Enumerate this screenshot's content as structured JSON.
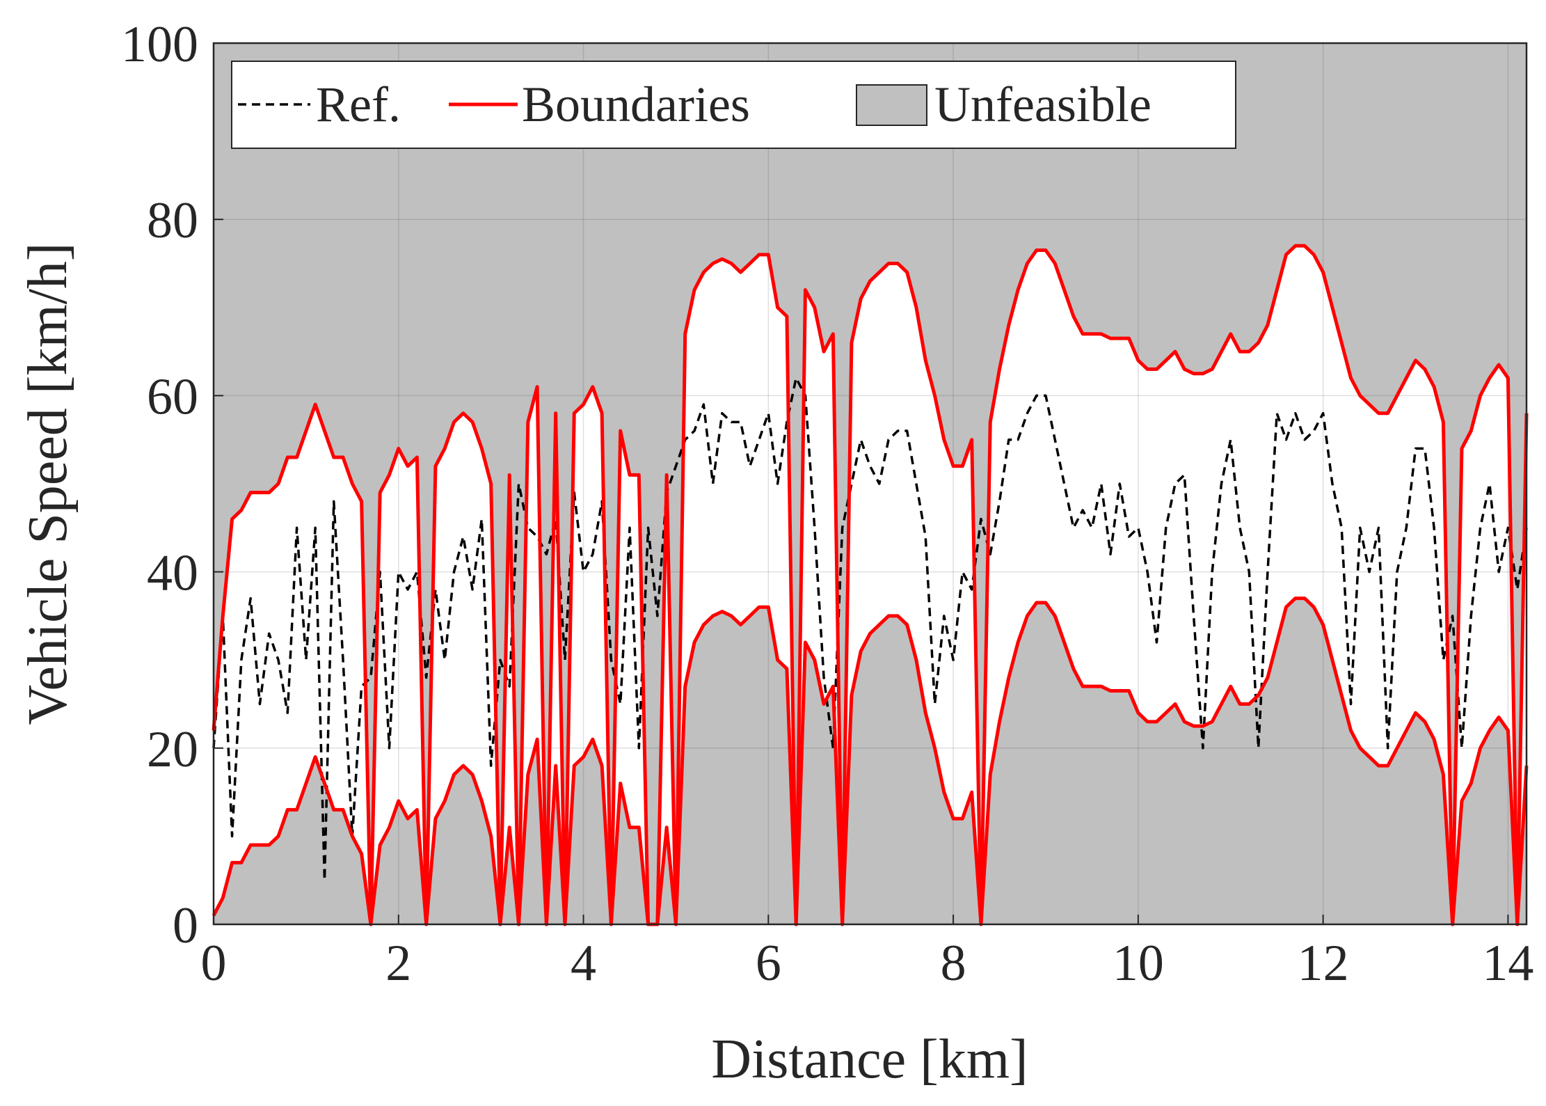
{
  "chart_data": {
    "type": "line",
    "xlabel": "Distance [km]",
    "ylabel": "Vehicle Speed [km/h]",
    "xlim": [
      0,
      14.2
    ],
    "ylim": [
      0,
      100
    ],
    "xticks": [
      0,
      2,
      4,
      6,
      8,
      10,
      12,
      14
    ],
    "yticks": [
      0,
      20,
      40,
      60,
      80,
      100
    ],
    "grid": true,
    "legend": "top-left",
    "unfeasible": {
      "name": "Unfeasible",
      "color": "#c0c0c0"
    },
    "x": [
      0,
      0.1,
      0.2,
      0.3,
      0.4,
      0.5,
      0.6,
      0.7,
      0.8,
      0.9,
      1,
      1.1,
      1.2,
      1.3,
      1.4,
      1.5,
      1.6,
      1.7,
      1.8,
      1.9,
      2,
      2.1,
      2.2,
      2.3,
      2.4,
      2.5,
      2.6,
      2.7,
      2.8,
      2.9,
      3,
      3.1,
      3.2,
      3.3,
      3.4,
      3.5,
      3.6,
      3.7,
      3.8,
      3.9,
      4,
      4.1,
      4.2,
      4.3,
      4.4,
      4.5,
      4.6,
      4.7,
      4.8,
      4.9,
      5,
      5.1,
      5.2,
      5.3,
      5.4,
      5.5,
      5.6,
      5.7,
      5.8,
      5.9,
      6,
      6.1,
      6.2,
      6.3,
      6.4,
      6.5,
      6.6,
      6.7,
      6.8,
      6.9,
      7,
      7.1,
      7.2,
      7.3,
      7.4,
      7.5,
      7.6,
      7.7,
      7.8,
      7.9,
      8,
      8.1,
      8.2,
      8.3,
      8.4,
      8.5,
      8.6,
      8.7,
      8.8,
      8.9,
      9,
      9.1,
      9.2,
      9.3,
      9.4,
      9.5,
      9.6,
      9.7,
      9.8,
      9.9,
      10,
      10.1,
      10.2,
      10.3,
      10.4,
      10.5,
      10.6,
      10.7,
      10.8,
      10.9,
      11,
      11.1,
      11.2,
      11.3,
      11.4,
      11.5,
      11.6,
      11.7,
      11.8,
      11.9,
      12,
      12.1,
      12.2,
      12.3,
      12.4,
      12.5,
      12.6,
      12.7,
      12.8,
      12.9,
      13,
      13.1,
      13.2,
      13.3,
      13.4,
      13.5,
      13.6,
      13.7,
      13.8,
      13.9,
      14,
      14.1,
      14.2
    ],
    "series": [
      {
        "name": "Ref.",
        "color": "#000000",
        "dashed": true,
        "values": [
          20,
          35,
          10,
          30,
          37,
          25,
          33,
          30,
          24,
          45,
          30,
          45,
          5,
          48,
          30,
          10,
          27,
          28,
          40,
          20,
          40,
          38,
          40,
          28,
          38,
          30,
          40,
          44,
          38,
          46,
          18,
          30,
          27,
          50,
          45,
          44,
          42,
          46,
          30,
          49,
          40,
          42,
          48,
          30,
          25,
          45,
          20,
          45,
          35,
          49,
          52,
          55,
          56,
          59,
          50,
          58,
          57,
          57,
          52,
          55,
          58,
          50,
          57,
          62,
          60,
          45,
          28,
          20,
          45,
          50,
          55,
          52,
          50,
          55,
          56,
          56,
          50,
          44,
          25,
          35,
          30,
          40,
          38,
          46,
          42,
          48,
          55,
          55,
          58,
          60,
          60,
          55,
          50,
          45,
          47,
          45,
          50,
          42,
          50,
          44,
          45,
          40,
          32,
          45,
          50,
          51,
          35,
          20,
          40,
          50,
          55,
          45,
          40,
          20,
          40,
          58,
          55,
          58,
          55,
          56,
          58,
          50,
          45,
          25,
          45,
          40,
          45,
          20,
          40,
          45,
          54,
          54,
          45,
          30,
          35,
          20,
          35,
          45,
          50,
          40,
          45,
          38,
          45
        ]
      },
      {
        "name": "Boundaries",
        "color": "#ff0000",
        "upper": [
          22,
          35,
          46,
          47,
          49,
          49,
          49,
          50,
          53,
          53,
          56,
          59,
          56,
          53,
          53,
          50,
          48,
          0,
          49,
          51,
          54,
          52,
          53,
          0,
          52,
          54,
          57,
          58,
          57,
          54,
          50,
          0,
          51,
          0,
          57,
          61,
          0,
          58,
          0,
          58,
          59,
          61,
          58,
          0,
          56,
          51,
          51,
          0,
          0,
          51,
          0,
          67,
          72,
          74,
          75,
          75.5,
          75,
          74,
          75,
          76,
          76,
          70,
          69,
          0,
          72,
          70,
          65,
          67,
          0,
          66,
          71,
          73,
          74,
          75,
          75,
          74,
          70,
          64,
          60,
          55,
          52,
          52,
          55,
          0,
          57,
          63,
          68,
          72,
          75,
          76.5,
          76.5,
          75,
          72,
          69,
          67,
          67,
          67,
          66.5,
          66.5,
          66.5,
          64,
          63,
          63,
          64,
          65,
          63,
          62.5,
          62.5,
          63,
          65,
          67,
          65,
          65,
          66,
          68,
          72,
          76,
          77,
          77,
          76,
          74,
          70,
          66,
          62,
          60,
          59,
          58,
          58,
          60,
          62,
          64,
          63,
          61,
          57,
          0,
          54,
          56,
          60,
          62,
          63.5,
          62,
          0,
          58
        ],
        "lower": [
          1,
          3,
          7,
          7,
          9,
          9,
          9,
          10,
          13,
          13,
          16,
          19,
          16,
          13,
          13,
          10,
          8,
          0,
          9,
          11,
          14,
          12,
          13,
          0,
          12,
          14,
          17,
          18,
          17,
          14,
          10,
          0,
          11,
          0,
          17,
          21,
          0,
          18,
          0,
          18,
          19,
          21,
          18,
          0,
          16,
          11,
          11,
          0,
          0,
          11,
          0,
          27,
          32,
          34,
          35,
          35.5,
          35,
          34,
          35,
          36,
          36,
          30,
          29,
          0,
          32,
          30,
          25,
          27,
          0,
          26,
          31,
          33,
          34,
          35,
          35,
          34,
          30,
          24,
          20,
          15,
          12,
          12,
          15,
          0,
          17,
          23,
          28,
          32,
          35,
          36.5,
          36.5,
          35,
          32,
          29,
          27,
          27,
          27,
          26.5,
          26.5,
          26.5,
          24,
          23,
          23,
          24,
          25,
          23,
          22.5,
          22.5,
          23,
          25,
          27,
          25,
          25,
          26,
          28,
          32,
          36,
          37,
          37,
          36,
          34,
          30,
          26,
          22,
          20,
          19,
          18,
          18,
          20,
          22,
          24,
          23,
          21,
          17,
          0,
          14,
          16,
          20,
          22,
          23.5,
          22,
          0,
          18
        ]
      }
    ]
  }
}
